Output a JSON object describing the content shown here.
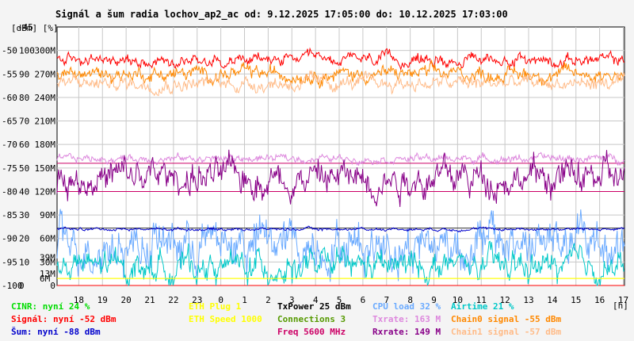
{
  "chart_data": {
    "type": "line",
    "title": "Signál a šum radia lochov_ap2_ac od: 9.12.2025 17:05:00 do: 10.12.2025 17:03:00",
    "y_unit_label": "[dBm] [%]",
    "x_unit_label": "[h]",
    "y_dbm_ticks": [
      "-45",
      "-50",
      "-55",
      "-60",
      "-65",
      "-70",
      "-75",
      "-80",
      "-85",
      "-90",
      "-95",
      "-100"
    ],
    "y_pct_ticks": [
      "100",
      "90",
      "80",
      "70",
      "60",
      "50",
      "40",
      "30",
      "20",
      "10",
      "0"
    ],
    "y_rate_ticks": [
      "300M",
      "270M",
      "240M",
      "210M",
      "180M",
      "150M",
      "120M",
      "90M",
      "60M",
      "30M",
      "0"
    ],
    "y_side_labels": [
      {
        "text": "39M",
        "dbm": -94,
        "color": "#dd88dd"
      },
      {
        "text": "13M",
        "dbm": -97.5,
        "color": "#dd88dd"
      },
      {
        "text": "6M",
        "dbm": -98.5,
        "color": "#ff8800"
      }
    ],
    "ylim_dbm": [
      -100,
      -45
    ],
    "x_ticks": [
      "18",
      "19",
      "20",
      "21",
      "22",
      "23",
      "0",
      "1",
      "2",
      "3",
      "4",
      "5",
      "6",
      "7",
      "8",
      "9",
      "10",
      "11",
      "12",
      "13",
      "14",
      "15",
      "16",
      "17"
    ],
    "x_start_hour": 17.083,
    "x_end_hour": 41.05,
    "series": [
      {
        "name": "Signál",
        "color": "#ff0000",
        "level_dbm": -52,
        "noise": 1.2
      },
      {
        "name": "Chain0 signal",
        "color": "#ff8800",
        "level_dbm": -55,
        "noise": 1.5
      },
      {
        "name": "Chain1 signal",
        "color": "#ffbb88",
        "level_dbm": -57,
        "noise": 1.5
      },
      {
        "name": "Txrate",
        "color": "#dd88dd",
        "level_dbm": -73,
        "noise": 0.8
      },
      {
        "name": "Rxrate",
        "color": "#880088",
        "level_dbm": -77,
        "noise": 3.5
      },
      {
        "name": "CPU load",
        "color": "#6aaaff",
        "level_dbm": -91,
        "noise": 5.0
      },
      {
        "name": "Airtime",
        "color": "#00c8c8",
        "level_dbm": -96,
        "noise": 3.0
      },
      {
        "name": "Šum",
        "color": "#0000cc",
        "level_dbm": -88,
        "noise": 0.3
      },
      {
        "name": "ETH Plug",
        "color": "#ffff00",
        "level_dbm": -98.5,
        "noise": 0
      }
    ],
    "reference_lines": [
      {
        "dbm": -100,
        "color": "#ff0000"
      },
      {
        "dbm": -98.5,
        "color": "#ffff00"
      },
      {
        "dbm": -87.8,
        "color": "#333333"
      },
      {
        "dbm": -80,
        "color": "#cc0066"
      },
      {
        "dbm": -74,
        "color": "#cc0066"
      }
    ]
  },
  "legend": [
    {
      "label": "CINR: nyní 24 %",
      "color": "#00dd00",
      "col": 0,
      "row": 0
    },
    {
      "label": "Signál: nyní -52 dBm",
      "color": "#ff0000",
      "col": 0,
      "row": 1
    },
    {
      "label": "Šum: nyní -88 dBm",
      "color": "#0000cc",
      "col": 0,
      "row": 2
    },
    {
      "label": "ETH Plug 1",
      "color": "#ffff00",
      "col": 1,
      "row": 0
    },
    {
      "label": "ETH Speed 1000",
      "color": "#ffff00",
      "col": 1,
      "row": 1
    },
    {
      "label": "TxPower 25 dBm",
      "color": "#000000",
      "col": 2,
      "row": 0
    },
    {
      "label": "Connections 3",
      "color": "#559900",
      "col": 2,
      "row": 1
    },
    {
      "label": "Freq 5600 MHz",
      "color": "#cc0066",
      "col": 2,
      "row": 2
    },
    {
      "label": "CPU load 32 %",
      "color": "#6aaaff",
      "col": 3,
      "row": 0
    },
    {
      "label": "Txrate: 163 M",
      "color": "#dd88dd",
      "col": 3,
      "row": 1
    },
    {
      "label": "Rxrate: 149 M",
      "color": "#880088",
      "col": 3,
      "row": 2
    },
    {
      "label": "Airtime 21 %",
      "color": "#00c8c8",
      "col": 4,
      "row": 0
    },
    {
      "label": "Chain0 signal -55 dBm",
      "color": "#ff8800",
      "col": 4,
      "row": 1
    },
    {
      "label": "Chain1 signal -57 dBm",
      "color": "#ffbb88",
      "col": 4,
      "row": 2
    }
  ]
}
